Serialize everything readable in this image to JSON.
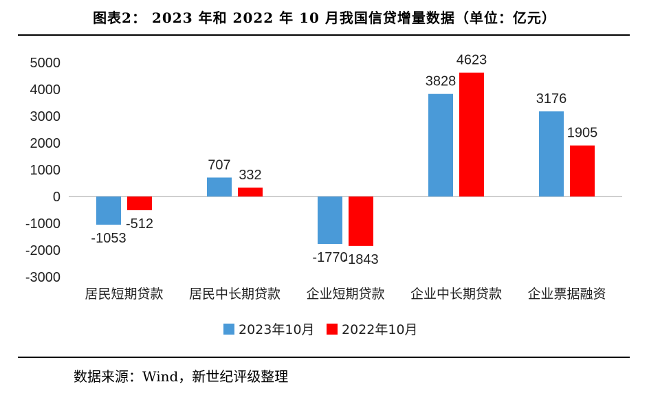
{
  "figure": {
    "title": "图表2： 2023 年和 2022 年 10 月我国信贷增量数据（单位：亿元）",
    "source": "数据来源：Wind，新世纪评级整理"
  },
  "chart_data": {
    "type": "bar",
    "categories": [
      "居民短期贷款",
      "居民中长期贷款",
      "企业短期贷款",
      "企业中长期贷款",
      "企业票据融资"
    ],
    "series": [
      {
        "name": "2023年10月",
        "color": "#4a9ad8",
        "values": [
          -1053,
          707,
          -1770,
          3828,
          3176
        ]
      },
      {
        "name": "2022年10月",
        "color": "#ff0000",
        "values": [
          -512,
          332,
          -1843,
          4623,
          1905
        ]
      }
    ],
    "ylim": [
      -3000,
      5000
    ],
    "yticks": [
      5000,
      4000,
      3000,
      2000,
      1000,
      0,
      -1000,
      -2000,
      -3000
    ],
    "legend": "bottom-center",
    "grid": false
  }
}
